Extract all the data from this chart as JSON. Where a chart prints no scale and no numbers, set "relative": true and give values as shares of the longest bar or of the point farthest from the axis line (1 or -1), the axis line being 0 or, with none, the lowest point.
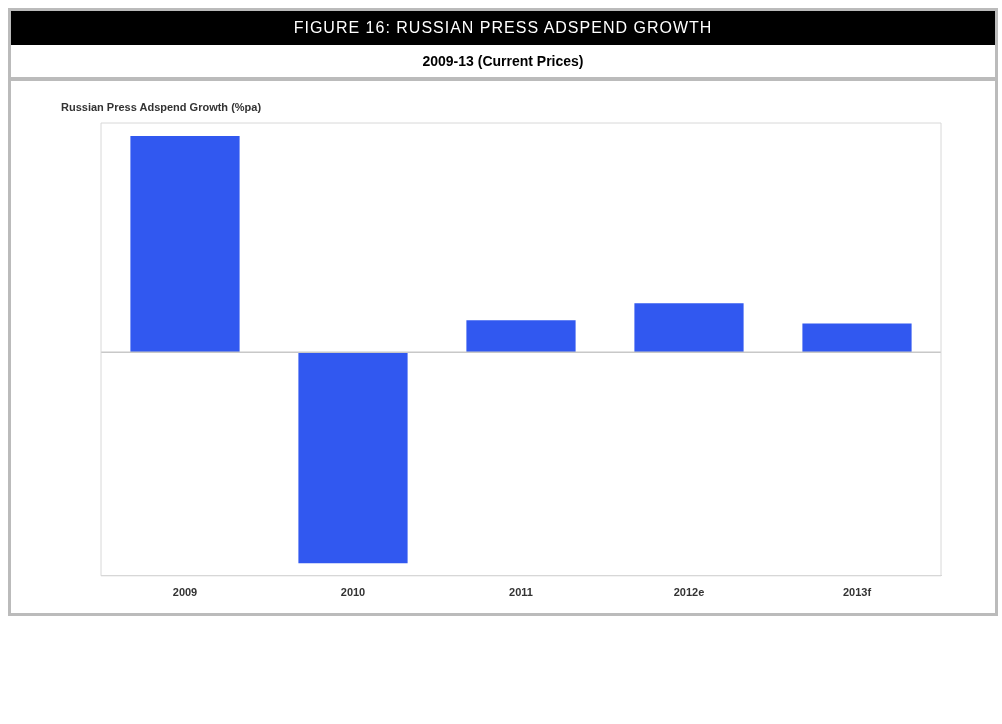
{
  "chart_data": {
    "type": "bar",
    "title": "FIGURE 16: RUSSIAN PRESS ADSPEND GROWTH",
    "subtitle": "2009-13 (Current Prices)",
    "ylabel": "Russian Press Adspend Growth (%pa)",
    "categories": [
      "2009",
      "2010",
      "2011",
      "2012e",
      "2013f"
    ],
    "values": [
      1,
      -0.975,
      0.148,
      0.227,
      0.133
    ],
    "color": "#3158f0",
    "relative": true,
    "grid": false,
    "legend": false
  }
}
